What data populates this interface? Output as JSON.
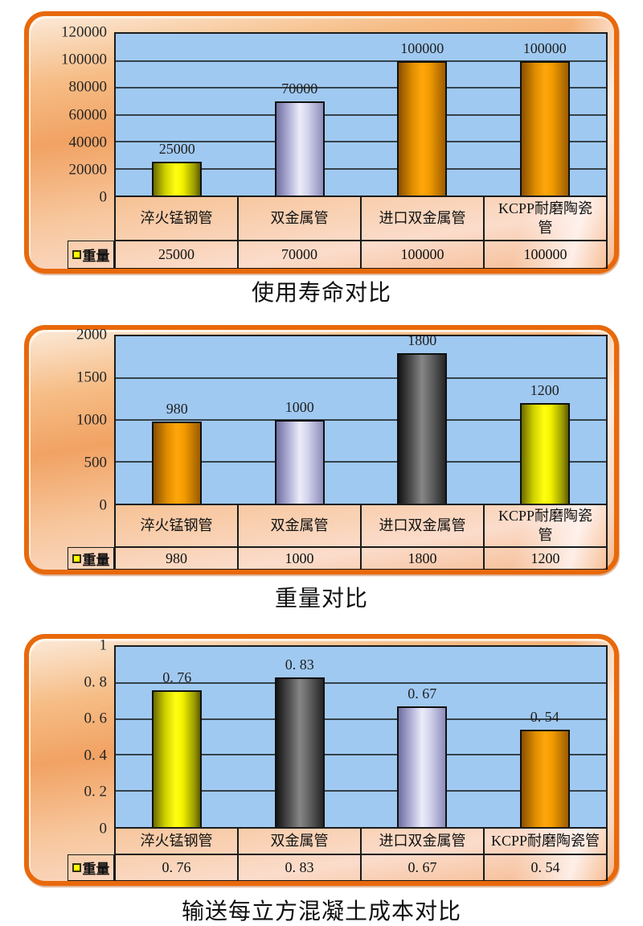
{
  "colors": {
    "panel_border": "#e8690b",
    "panel_gradient": [
      "#fcead9",
      "#f1a263",
      "#fbdccb"
    ],
    "plot_background": "#a0c9f1",
    "gridline": "#35424a",
    "bar_palette": {
      "yellow": "#ffff00",
      "lavender": "#ccccea",
      "orange": "#ffa500",
      "gray": "#6a6a6a"
    },
    "legend_marker": "#ffff00"
  },
  "chart_data": [
    {
      "type": "bar",
      "title": "使用寿命对比",
      "legend": "重量",
      "categories": [
        "淬火锰钢管",
        "双金属管",
        "进口双金属管",
        "KCPP耐磨陶瓷管"
      ],
      "categories_display": [
        "淬火锰钢管",
        "双金属管",
        "进口双金属管",
        "KCPP耐磨陶瓷\n管"
      ],
      "values": [
        25000,
        70000,
        100000,
        100000
      ],
      "value_labels": [
        "25000",
        "70000",
        "100000",
        "100000"
      ],
      "table_values": [
        "25000",
        "70000",
        "100000",
        "100000"
      ],
      "bar_colors": [
        "yellow",
        "lavender",
        "orange",
        "orange"
      ],
      "ymax": 120000,
      "ylim": [
        0,
        120000
      ],
      "grid": true,
      "legend_position": "table-left",
      "yticks": [
        {
          "value": 0,
          "label": "0"
        },
        {
          "value": 20000,
          "label": "20000"
        },
        {
          "value": 40000,
          "label": "40000"
        },
        {
          "value": 60000,
          "label": "60000"
        },
        {
          "value": 80000,
          "label": "80000"
        },
        {
          "value": 100000,
          "label": "100000"
        },
        {
          "value": 120000,
          "label": "120000"
        }
      ]
    },
    {
      "type": "bar",
      "title": "重量对比",
      "legend": "重量",
      "categories": [
        "淬火锰钢管",
        "双金属管",
        "进口双金属管",
        "KCPP耐磨陶瓷管"
      ],
      "categories_display": [
        "淬火锰钢管",
        "双金属管",
        "进口双金属管",
        "KCPP耐磨陶瓷\n管"
      ],
      "values": [
        980,
        1000,
        1800,
        1200
      ],
      "value_labels": [
        "980",
        "1000",
        "1800",
        "1200"
      ],
      "table_values": [
        "980",
        "1000",
        "1800",
        "1200"
      ],
      "bar_colors": [
        "orange",
        "lavender",
        "gray",
        "yellow"
      ],
      "ymax": 2000,
      "ylim": [
        0,
        2000
      ],
      "grid": true,
      "legend_position": "table-left",
      "yticks": [
        {
          "value": 0,
          "label": "0"
        },
        {
          "value": 500,
          "label": "500"
        },
        {
          "value": 1000,
          "label": "1000"
        },
        {
          "value": 1500,
          "label": "1500"
        },
        {
          "value": 2000,
          "label": "2000"
        }
      ]
    },
    {
      "type": "bar",
      "title": "输送每立方混凝土成本对比",
      "legend": "重量",
      "categories": [
        "淬火锰钢管",
        "双金属管",
        "进口双金属管",
        "KCPP耐磨陶瓷管"
      ],
      "categories_display": [
        "淬火锰钢管",
        "双金属管",
        "进口双金属管",
        "KCPP耐磨陶瓷管"
      ],
      "values": [
        0.76,
        0.83,
        0.67,
        0.54
      ],
      "value_labels": [
        "0. 76",
        "0. 83",
        "0. 67",
        "0. 54"
      ],
      "table_values": [
        "0. 76",
        "0. 83",
        "0. 67",
        "0. 54"
      ],
      "bar_colors": [
        "yellow",
        "gray",
        "lavender",
        "orange"
      ],
      "ymax": 1,
      "ylim": [
        0,
        1
      ],
      "grid": true,
      "legend_position": "table-left",
      "yticks": [
        {
          "value": 0,
          "label": "0"
        },
        {
          "value": 0.2,
          "label": "0. 2"
        },
        {
          "value": 0.4,
          "label": "0. 4"
        },
        {
          "value": 0.6,
          "label": "0. 6"
        },
        {
          "value": 0.8,
          "label": "0. 8"
        },
        {
          "value": 1,
          "label": "1"
        }
      ]
    }
  ]
}
